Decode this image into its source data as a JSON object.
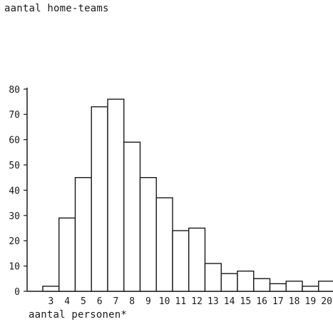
{
  "chart_data": {
    "type": "bar",
    "ylabel": "aantal home-teams",
    "xlabel": "aantal personen*",
    "categories": [
      "3",
      "4",
      "5",
      "6",
      "7",
      "8",
      "9",
      "10",
      "11",
      "12",
      "13",
      "14",
      "15",
      "16",
      "17",
      "18",
      "19",
      "20"
    ],
    "values": [
      2,
      29,
      45,
      73,
      76,
      59,
      45,
      37,
      24,
      25,
      11,
      7,
      8,
      5,
      3,
      4,
      2,
      4
    ],
    "ylim": [
      0,
      80
    ],
    "yticks": [
      "0",
      "10",
      "20",
      "30",
      "40",
      "50",
      "60",
      "70",
      "80"
    ],
    "grid": false,
    "legend": "none",
    "colors": {
      "bar_fill": "#ffffff",
      "bar_stroke": "#1a1a1a",
      "axis": "#1a1a1a"
    }
  }
}
